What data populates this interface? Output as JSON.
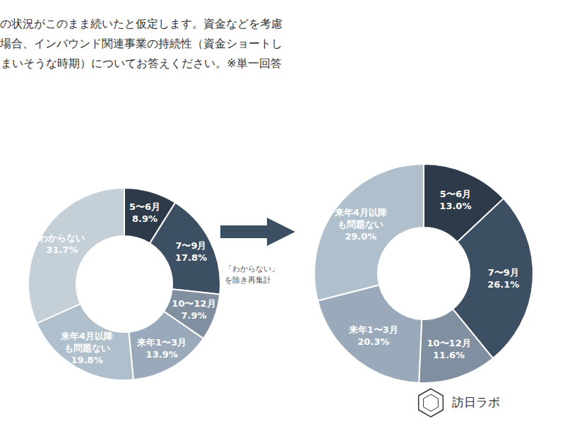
{
  "chart_data": [
    {
      "type": "pie",
      "title": "現在の状況がこのまま続いたと仮定します。資金などを考慮\nした場合、インバウンド関連事業の持続性（資金ショートし\nてしまいそうな時期）についてお答えください。※単一回答",
      "categories": [
        "5〜6月",
        "7〜9月",
        "10〜12月",
        "来年1〜3月",
        "来年4月以降\nも問題ない",
        "わからない"
      ],
      "values": [
        8.9,
        17.8,
        7.9,
        13.9,
        19.8,
        31.7
      ],
      "value_labels": [
        "8.9%",
        "17.8%",
        "7.9%",
        "13.9%",
        "19.8%",
        "31.7%"
      ],
      "colors": [
        "#2d3a4a",
        "#3d4f63",
        "#8090a0",
        "#9aaabb",
        "#b0bfcc",
        "#c5cfd8"
      ],
      "data_labels": true
    },
    {
      "type": "pie",
      "categories": [
        "5〜6月",
        "7〜9月",
        "10〜12月",
        "来年1〜3月",
        "来年4月以降\nも問題ない"
      ],
      "values": [
        13.0,
        26.1,
        11.6,
        20.3,
        29.0
      ],
      "value_labels": [
        "13.0%",
        "26.1%",
        "11.6%",
        "20.3%",
        "29.0%"
      ],
      "colors": [
        "#2d3a4a",
        "#3d4f63",
        "#8090a0",
        "#9aaabb",
        "#b0bfcc"
      ],
      "data_labels": true,
      "annotations": [
        "「わからない」\nを除き再集計",
        "訪日ラボ"
      ]
    }
  ]
}
